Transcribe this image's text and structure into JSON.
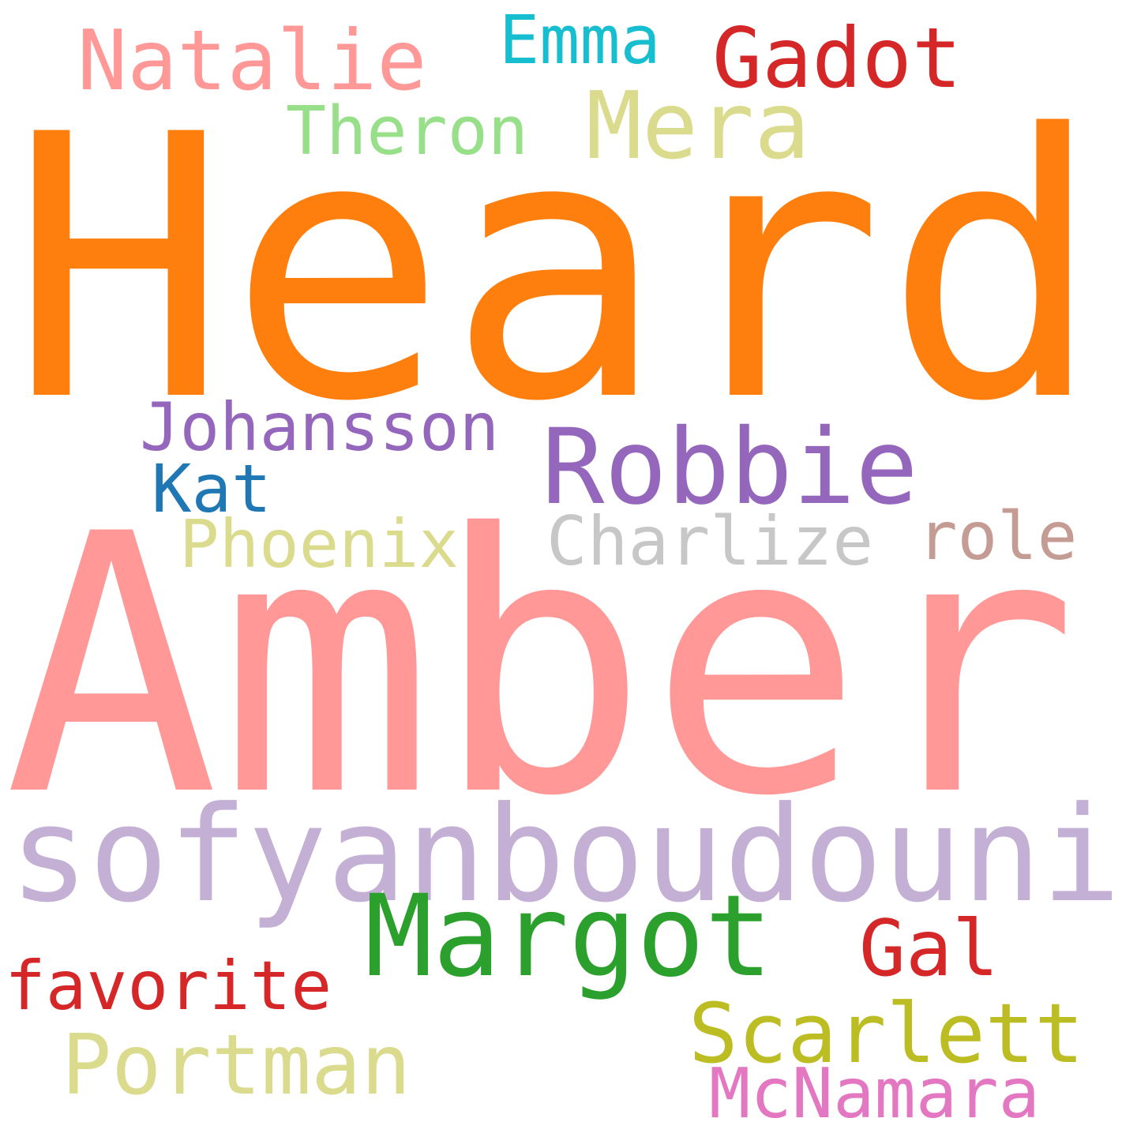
{
  "words": [
    {
      "text": "Heard",
      "color": "#ff7f0e"
    },
    {
      "text": "Amber",
      "color": "#ff9896"
    },
    {
      "text": "sofyanboudouni",
      "color": "#c5b0d5"
    },
    {
      "text": "Natalie",
      "color": "#ff9896"
    },
    {
      "text": "Emma",
      "color": "#17becf"
    },
    {
      "text": "Gadot",
      "color": "#d62728"
    },
    {
      "text": "Theron",
      "color": "#98df8a"
    },
    {
      "text": "Mera",
      "color": "#dbdb8d"
    },
    {
      "text": "Johansson",
      "color": "#9467bd"
    },
    {
      "text": "Robbie",
      "color": "#9467bd"
    },
    {
      "text": "Kat",
      "color": "#1f77b4"
    },
    {
      "text": "Phoenix",
      "color": "#dbdb8d"
    },
    {
      "text": "Charlize",
      "color": "#c7c7c7"
    },
    {
      "text": "role",
      "color": "#c49c94"
    },
    {
      "text": "Margot",
      "color": "#2ca02c"
    },
    {
      "text": "Gal",
      "color": "#d62728"
    },
    {
      "text": "favorite",
      "color": "#d62728"
    },
    {
      "text": "Scarlett",
      "color": "#bcbd22"
    },
    {
      "text": "Portman",
      "color": "#dbdb8d"
    },
    {
      "text": "McNamara",
      "color": "#e377c2"
    }
  ]
}
